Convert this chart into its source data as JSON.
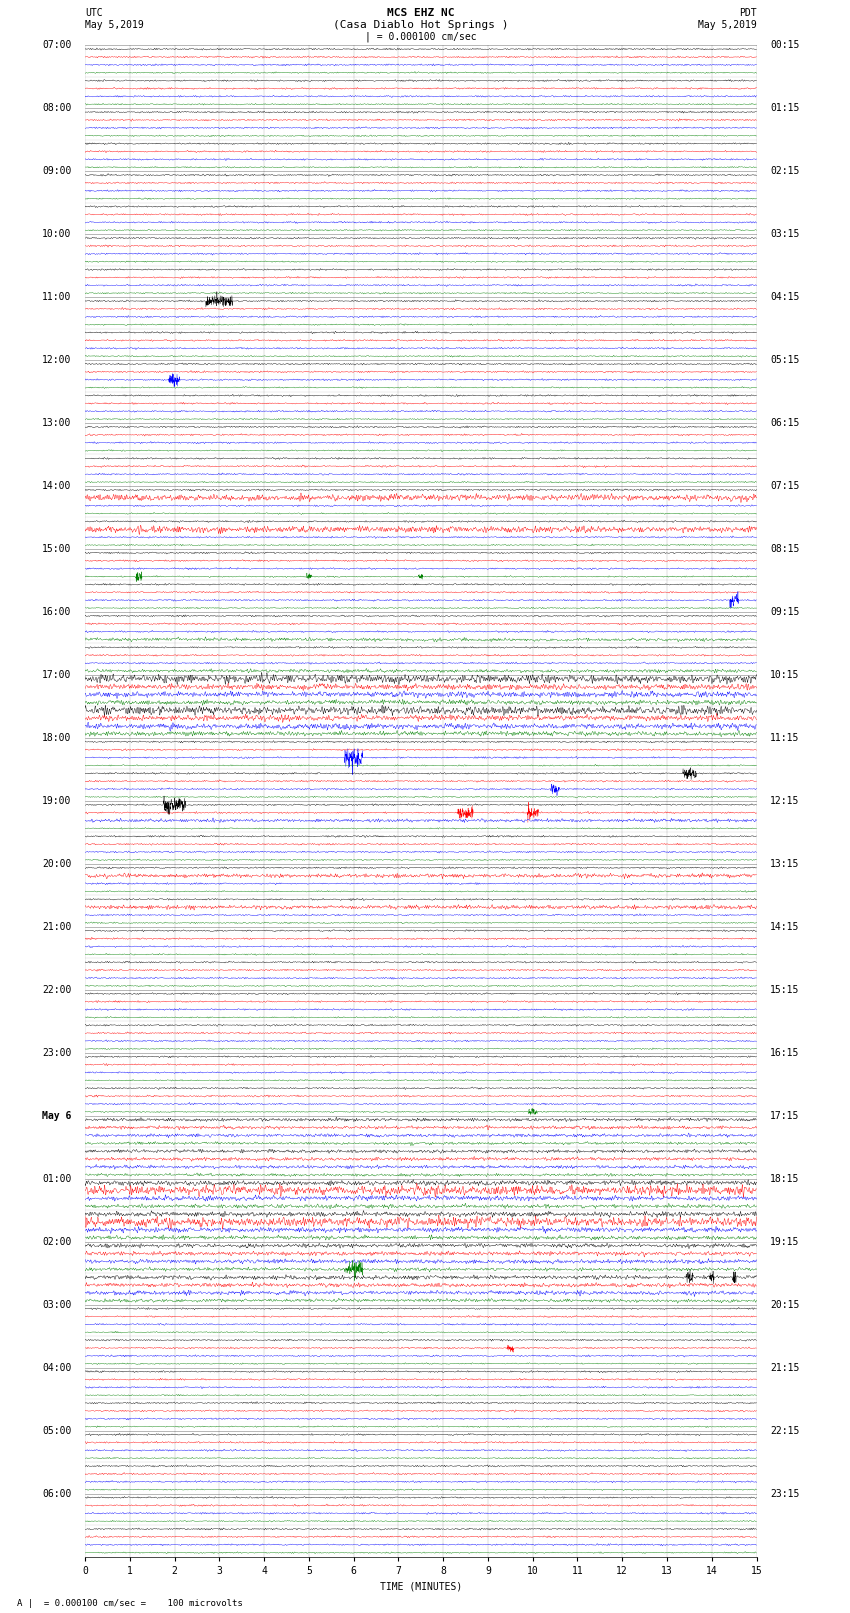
{
  "title_line1": "MCS EHZ NC",
  "title_line2": "(Casa Diablo Hot Springs )",
  "scale_label": "| = 0.000100 cm/sec",
  "left_header": "UTC",
  "left_date": "May 5,2019",
  "right_header": "PDT",
  "right_date": "May 5,2019",
  "xlabel": "TIME (MINUTES)",
  "bottom_note": "A |  = 0.000100 cm/sec =    100 microvolts",
  "xlim": [
    0,
    15
  ],
  "xticks": [
    0,
    1,
    2,
    3,
    4,
    5,
    6,
    7,
    8,
    9,
    10,
    11,
    12,
    13,
    14,
    15
  ],
  "colors": [
    "black",
    "red",
    "blue",
    "green"
  ],
  "utc_times": [
    "07:00",
    "08:00",
    "09:00",
    "10:00",
    "11:00",
    "12:00",
    "13:00",
    "14:00",
    "15:00",
    "16:00",
    "17:00",
    "18:00",
    "19:00",
    "20:00",
    "21:00",
    "22:00",
    "23:00",
    "May 6",
    "01:00",
    "02:00",
    "03:00",
    "04:00",
    "05:00",
    "06:00"
  ],
  "pdt_times": [
    "00:15",
    "01:15",
    "02:15",
    "03:15",
    "04:15",
    "05:15",
    "06:15",
    "07:15",
    "08:15",
    "09:15",
    "10:15",
    "11:15",
    "12:15",
    "13:15",
    "14:15",
    "15:15",
    "16:15",
    "17:15",
    "18:15",
    "19:15",
    "20:15",
    "21:15",
    "22:15",
    "23:15"
  ],
  "n_time_rows": 24,
  "n_channels": 4,
  "background_color": "white",
  "text_color": "black",
  "title_fontsize": 8,
  "label_fontsize": 7,
  "tick_fontsize": 7
}
